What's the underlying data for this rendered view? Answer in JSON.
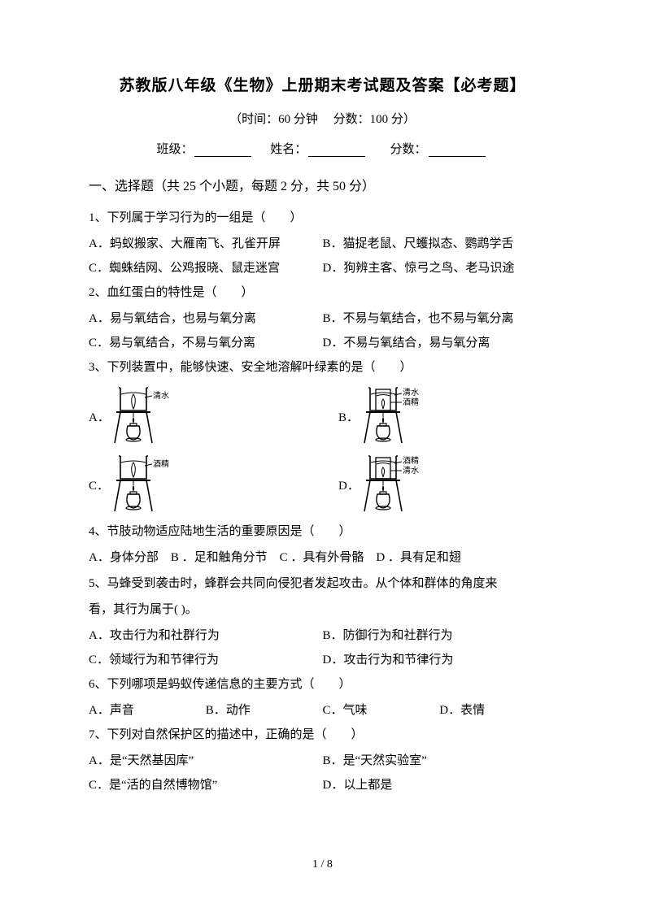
{
  "title": "苏教版八年级《生物》上册期末考试题及答案【必考题】",
  "subtitle": "（时间：60 分钟　 分数：100 分）",
  "info": {
    "class_label": "班级：",
    "name_label": "姓名：",
    "score_label": "分数："
  },
  "section1": "一、选择题（共 25 个小题，每题 2 分，共 50 分）",
  "q1": {
    "stem": "1、下列属于学习行为的一组是（　　）",
    "A": "A．蚂蚁搬家、大雁南飞、孔雀开屏",
    "B": "B．猫捉老鼠、尺蠖拟态、鹦鹉学舌",
    "C": "C．蜘蛛结网、公鸡报晓、鼠走迷宫",
    "D": "D．狗辨主客、惊弓之鸟、老马识途"
  },
  "q2": {
    "stem": "2、血红蛋白的特性是（　　）",
    "A": "A．易与氧结合，也易与氧分离",
    "B": "B．不易与氧结合，也不易与氧分离",
    "C": "C．易与氧结合，不易与氧分离",
    "D": "D．不易与氧结合，易与氧分离"
  },
  "q3": {
    "stem": "3、下列装置中，能够快速、安全地溶解叶绿素的是（　　）",
    "labels": {
      "A": "A．",
      "B": "B．",
      "C": "C．",
      "D": "D．"
    },
    "beakers": {
      "A": {
        "outer_label": "清水",
        "inner_label": null
      },
      "B": {
        "outer_label": "清水",
        "inner_label": "酒精"
      },
      "C": {
        "outer_label": "酒精",
        "inner_label": null
      },
      "D": {
        "outer_label": "酒精",
        "inner_label": "清水"
      }
    }
  },
  "q4": {
    "stem": "4、节肢动物适应陆地生活的重要原因是（　　）",
    "line": "A．身体分部　B ．足和触角分节　C ．具有外骨骼　D ．具有足和翅"
  },
  "q5": {
    "stem1": "5、马蜂受到袭击时，蜂群会共同向侵犯者发起攻击。从个体和群体的角度来",
    "stem2": "看，其行为属于(  )。",
    "A": "A．攻击行为和社群行为",
    "B": "B．防御行为和社群行为",
    "C": "C．领域行为和节律行为",
    "D": "D．攻击行为和节律行为"
  },
  "q6": {
    "stem": "6、下列哪项是蚂蚁传递信息的主要方式（　　）",
    "A": "A．声音",
    "B": "B．动作",
    "C": "C．气味",
    "D": "D．表情"
  },
  "q7": {
    "stem": "7、下列对自然保护区的描述中，正确的是（　　）",
    "A": "A．是“天然基因库”",
    "B": "B．是“天然实验室”",
    "C": "C．是“活的自然博物馆”",
    "D": "D．以上都是"
  },
  "pagenum": "1 / 8",
  "svg": {
    "stroke": "#000000",
    "stand_fill": "#000000",
    "flame": "#000000"
  }
}
